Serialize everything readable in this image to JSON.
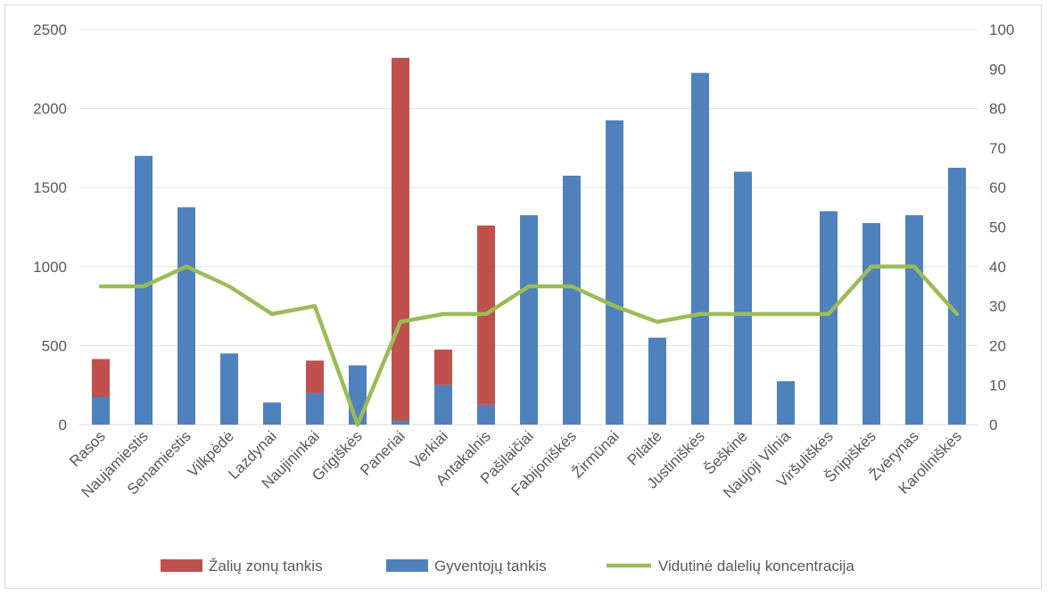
{
  "chart_data": {
    "type": "bar",
    "stacked": true,
    "categories": [
      "Rasos",
      "Naujamiestis",
      "Senamiestis",
      "Vilkpėdė",
      "Lazdynai",
      "Naujininkai",
      "Grigiškės",
      "Paneriai",
      "Verkiai",
      "Antakalnis",
      "Pašilaičiai",
      "Fabijoniškės",
      "Žirmūnai",
      "Pilaitė",
      "Justiniškės",
      "Šeškinė",
      "Naujoji  Vilnia",
      "Viršuliškės",
      "Šnipiškės",
      "Žvėrynas",
      "Karoliniškės"
    ],
    "series": [
      {
        "name": "Gyventojų tankis",
        "axis": "left",
        "kind": "bar",
        "color": "#4f81bd",
        "values": [
          175,
          1700,
          1375,
          450,
          140,
          200,
          375,
          25,
          250,
          125,
          1325,
          1575,
          1925,
          550,
          2225,
          1600,
          275,
          1350,
          1275,
          1325,
          1625
        ]
      },
      {
        "name": "Žalių zonų tankis",
        "axis": "left",
        "kind": "bar",
        "color": "#c0504d",
        "values": [
          240,
          0,
          0,
          0,
          0,
          205,
          0,
          2295,
          225,
          1135,
          0,
          0,
          0,
          0,
          0,
          0,
          0,
          0,
          0,
          0,
          0
        ]
      },
      {
        "name": "Vidutinė dalelių koncentracija",
        "axis": "right",
        "kind": "line",
        "color": "#9bbb59",
        "values": [
          35,
          35,
          40,
          35,
          28,
          30,
          0,
          26,
          28,
          28,
          35,
          35,
          30,
          26,
          28,
          28,
          28,
          28,
          40,
          40,
          28
        ]
      }
    ],
    "ylim": [
      0,
      2500
    ],
    "yticks": [
      "0",
      "500",
      "1000",
      "1500",
      "2000",
      "2500"
    ],
    "y2lim": [
      0,
      100
    ],
    "y2ticks": [
      "0",
      "10",
      "20",
      "30",
      "40",
      "50",
      "60",
      "70",
      "80",
      "90",
      "100"
    ],
    "grid": true,
    "legend_position": "bottom",
    "legend": [
      "Žalių zonų tankis",
      "Gyventojų tankis",
      "Vidutinė dalelių koncentracija"
    ],
    "title": "",
    "xlabel": "",
    "ylabel": ""
  }
}
